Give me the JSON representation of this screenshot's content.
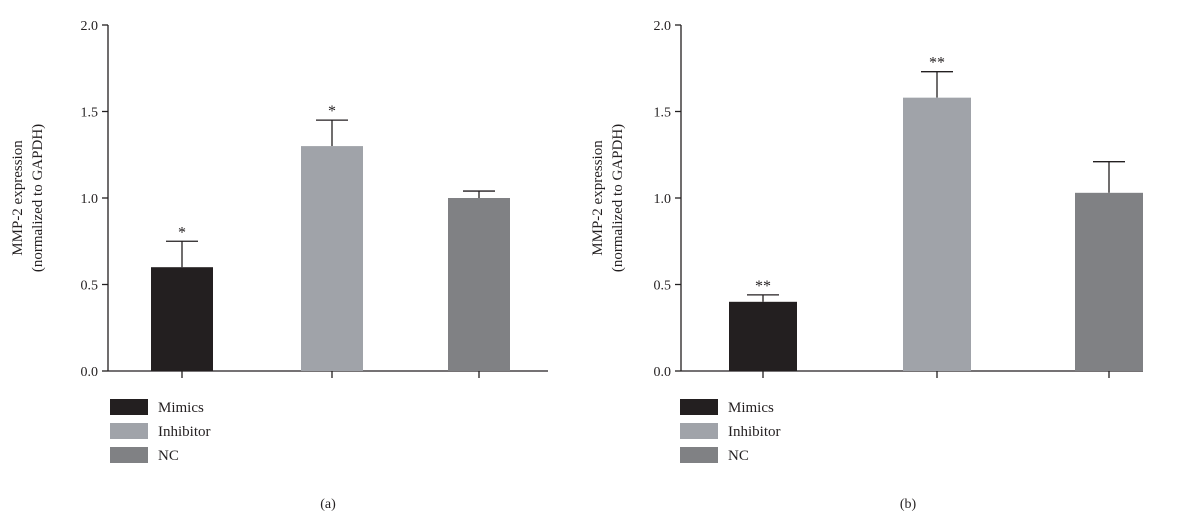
{
  "colors": {
    "Mimics": "#231f20",
    "Inhibitor": "#a0a3a9",
    "NC": "#808184",
    "axis": "#231f20"
  },
  "chart_data": [
    {
      "type": "bar",
      "panel_label": "(a)",
      "ylabel_line1": "MMP-2 expression",
      "ylabel_line2": "(normalized to GAPDH)",
      "ylim": [
        0,
        2.0
      ],
      "yticks": [
        "0.0",
        "0.5",
        "1.0",
        "1.5",
        "2.0"
      ],
      "categories": [
        "Mimics",
        "Inhibitor",
        "NC"
      ],
      "values": [
        0.6,
        1.3,
        1.0
      ],
      "errors": [
        0.15,
        0.15,
        0.04
      ],
      "significance": [
        "*",
        "*",
        ""
      ],
      "legend": [
        "Mimics",
        "Inhibitor",
        "NC"
      ],
      "legend_position": "bottom-left",
      "grid": false
    },
    {
      "type": "bar",
      "panel_label": "(b)",
      "ylabel_line1": "MMP-2 expression",
      "ylabel_line2": "(normalized to GAPDH)",
      "ylim": [
        0,
        2.0
      ],
      "yticks": [
        "0.0",
        "0.5",
        "1.0",
        "1.5",
        "2.0"
      ],
      "categories": [
        "Mimics",
        "Inhibitor",
        "NC"
      ],
      "values": [
        0.4,
        1.58,
        1.03
      ],
      "errors": [
        0.04,
        0.15,
        0.18
      ],
      "significance": [
        "**",
        "**",
        ""
      ],
      "legend": [
        "Mimics",
        "Inhibitor",
        "NC"
      ],
      "legend_position": "bottom-left",
      "grid": false
    }
  ]
}
